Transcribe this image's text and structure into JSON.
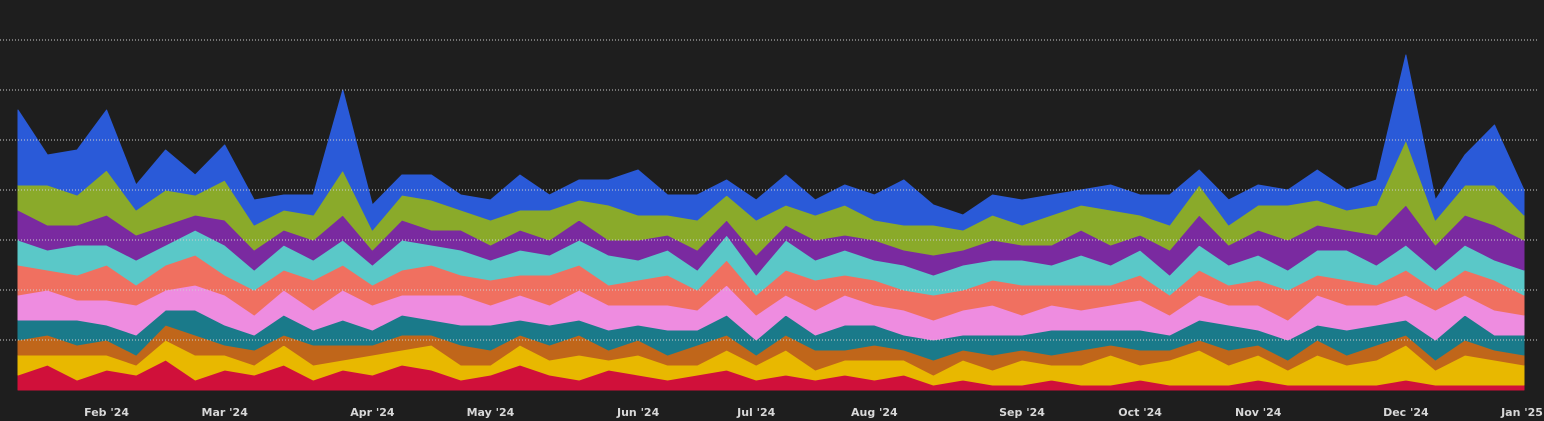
{
  "chart_data": {
    "type": "stacked_area",
    "categories": [
      null,
      null,
      null,
      "Feb '24",
      null,
      null,
      null,
      "Mar '24",
      null,
      null,
      null,
      null,
      "Apr '24",
      null,
      null,
      null,
      "May '24",
      null,
      null,
      null,
      null,
      "Jun '24",
      null,
      null,
      null,
      "Jul '24",
      null,
      null,
      null,
      "Aug '24",
      null,
      null,
      null,
      null,
      "Sep '24",
      null,
      null,
      null,
      "Oct '24",
      null,
      null,
      null,
      "Nov '24",
      null,
      null,
      null,
      null,
      "Dec '24",
      null,
      null,
      null,
      "Jan '25"
    ],
    "ylim": [
      0,
      7.8
    ],
    "yticks": [
      1,
      2,
      3,
      4,
      5,
      6,
      7
    ],
    "grid": true,
    "show_ytick_labels": false,
    "series": [
      {
        "color": "#d0103a",
        "values": [
          0.3,
          0.5,
          0.2,
          0.4,
          0.3,
          0.6,
          0.2,
          0.4,
          0.3,
          0.5,
          0.2,
          0.4,
          0.3,
          0.5,
          0.4,
          0.2,
          0.3,
          0.5,
          0.3,
          0.2,
          0.4,
          0.3,
          0.2,
          0.3,
          0.4,
          0.2,
          0.3,
          0.2,
          0.3,
          0.2,
          0.3,
          0.1,
          0.2,
          0.1,
          0.1,
          0.2,
          0.1,
          0.1,
          0.2,
          0.1,
          0.1,
          0.1,
          0.2,
          0.1,
          0.1,
          0.1,
          0.1,
          0.2,
          0.1,
          0.1,
          0.1,
          0.1
        ]
      },
      {
        "color": "#e8b800",
        "values": [
          0.4,
          0.2,
          0.5,
          0.3,
          0.2,
          0.4,
          0.5,
          0.3,
          0.2,
          0.4,
          0.3,
          0.2,
          0.4,
          0.3,
          0.5,
          0.3,
          0.2,
          0.4,
          0.3,
          0.5,
          0.2,
          0.4,
          0.3,
          0.2,
          0.4,
          0.3,
          0.5,
          0.2,
          0.3,
          0.4,
          0.3,
          0.2,
          0.4,
          0.3,
          0.5,
          0.3,
          0.4,
          0.6,
          0.3,
          0.5,
          0.7,
          0.4,
          0.5,
          0.3,
          0.6,
          0.4,
          0.5,
          0.7,
          0.3,
          0.6,
          0.5,
          0.4
        ]
      },
      {
        "color": "#c0661a",
        "values": [
          0.3,
          0.4,
          0.2,
          0.3,
          0.2,
          0.3,
          0.4,
          0.2,
          0.3,
          0.2,
          0.4,
          0.3,
          0.2,
          0.3,
          0.2,
          0.4,
          0.3,
          0.2,
          0.3,
          0.4,
          0.2,
          0.3,
          0.2,
          0.4,
          0.3,
          0.2,
          0.3,
          0.4,
          0.2,
          0.3,
          0.2,
          0.3,
          0.2,
          0.3,
          0.2,
          0.2,
          0.3,
          0.2,
          0.3,
          0.2,
          0.2,
          0.3,
          0.2,
          0.2,
          0.3,
          0.2,
          0.3,
          0.2,
          0.2,
          0.3,
          0.2,
          0.2
        ]
      },
      {
        "color": "#1a7a8a",
        "values": [
          0.4,
          0.3,
          0.5,
          0.3,
          0.4,
          0.3,
          0.5,
          0.4,
          0.3,
          0.4,
          0.3,
          0.5,
          0.3,
          0.4,
          0.3,
          0.4,
          0.5,
          0.3,
          0.4,
          0.3,
          0.4,
          0.3,
          0.5,
          0.3,
          0.4,
          0.3,
          0.4,
          0.3,
          0.5,
          0.4,
          0.3,
          0.4,
          0.3,
          0.4,
          0.3,
          0.5,
          0.4,
          0.3,
          0.4,
          0.3,
          0.4,
          0.5,
          0.3,
          0.4,
          0.3,
          0.5,
          0.4,
          0.3,
          0.4,
          0.5,
          0.3,
          0.4
        ]
      },
      {
        "color": "#ee8ce0",
        "values": [
          0.5,
          0.6,
          0.4,
          0.5,
          0.6,
          0.4,
          0.5,
          0.6,
          0.4,
          0.5,
          0.4,
          0.6,
          0.5,
          0.4,
          0.5,
          0.6,
          0.4,
          0.5,
          0.4,
          0.6,
          0.5,
          0.4,
          0.5,
          0.4,
          0.6,
          0.5,
          0.4,
          0.5,
          0.6,
          0.4,
          0.5,
          0.4,
          0.5,
          0.6,
          0.4,
          0.5,
          0.4,
          0.5,
          0.6,
          0.4,
          0.5,
          0.4,
          0.5,
          0.4,
          0.6,
          0.5,
          0.4,
          0.5,
          0.6,
          0.4,
          0.5,
          0.4
        ]
      },
      {
        "color": "#f07060",
        "values": [
          0.6,
          0.4,
          0.5,
          0.7,
          0.4,
          0.5,
          0.6,
          0.4,
          0.5,
          0.4,
          0.6,
          0.5,
          0.4,
          0.5,
          0.6,
          0.4,
          0.5,
          0.4,
          0.6,
          0.5,
          0.4,
          0.5,
          0.6,
          0.4,
          0.5,
          0.4,
          0.5,
          0.6,
          0.4,
          0.5,
          0.4,
          0.5,
          0.4,
          0.5,
          0.6,
          0.4,
          0.5,
          0.4,
          0.5,
          0.4,
          0.5,
          0.4,
          0.5,
          0.6,
          0.4,
          0.5,
          0.4,
          0.5,
          0.4,
          0.5,
          0.6,
          0.4
        ]
      },
      {
        "color": "#5ac8c8",
        "values": [
          0.5,
          0.4,
          0.6,
          0.4,
          0.5,
          0.4,
          0.5,
          0.6,
          0.4,
          0.5,
          0.4,
          0.5,
          0.4,
          0.6,
          0.4,
          0.5,
          0.4,
          0.5,
          0.4,
          0.5,
          0.6,
          0.4,
          0.5,
          0.4,
          0.5,
          0.4,
          0.6,
          0.4,
          0.5,
          0.4,
          0.5,
          0.4,
          0.5,
          0.4,
          0.5,
          0.4,
          0.6,
          0.4,
          0.5,
          0.4,
          0.5,
          0.4,
          0.5,
          0.4,
          0.5,
          0.6,
          0.4,
          0.5,
          0.4,
          0.5,
          0.4,
          0.5
        ]
      },
      {
        "color": "#7a2aa0",
        "values": [
          0.6,
          0.5,
          0.4,
          0.6,
          0.5,
          0.4,
          0.3,
          0.5,
          0.4,
          0.3,
          0.4,
          0.5,
          0.3,
          0.4,
          0.3,
          0.4,
          0.3,
          0.4,
          0.3,
          0.4,
          0.3,
          0.4,
          0.3,
          0.4,
          0.3,
          0.4,
          0.3,
          0.4,
          0.3,
          0.4,
          0.3,
          0.4,
          0.3,
          0.4,
          0.3,
          0.4,
          0.5,
          0.4,
          0.3,
          0.5,
          0.6,
          0.4,
          0.5,
          0.6,
          0.5,
          0.4,
          0.6,
          0.8,
          0.5,
          0.6,
          0.7,
          0.6
        ]
      },
      {
        "color": "#8aaa2a",
        "values": [
          0.5,
          0.8,
          0.6,
          0.9,
          0.5,
          0.7,
          0.4,
          0.8,
          0.5,
          0.4,
          0.5,
          0.9,
          0.4,
          0.5,
          0.6,
          0.4,
          0.5,
          0.4,
          0.6,
          0.4,
          0.7,
          0.5,
          0.4,
          0.6,
          0.5,
          0.7,
          0.4,
          0.5,
          0.6,
          0.4,
          0.5,
          0.6,
          0.4,
          0.5,
          0.4,
          0.6,
          0.5,
          0.7,
          0.4,
          0.5,
          0.6,
          0.4,
          0.5,
          0.7,
          0.5,
          0.4,
          0.6,
          1.3,
          0.5,
          0.6,
          0.8,
          0.5
        ]
      },
      {
        "color": "#2a5ad8",
        "values": [
          1.5,
          0.6,
          0.9,
          1.2,
          0.5,
          0.8,
          0.4,
          0.7,
          0.5,
          0.3,
          0.4,
          1.6,
          0.5,
          0.4,
          0.5,
          0.3,
          0.4,
          0.7,
          0.3,
          0.4,
          0.5,
          0.9,
          0.4,
          0.5,
          0.3,
          0.4,
          0.6,
          0.3,
          0.4,
          0.5,
          0.9,
          0.4,
          0.3,
          0.4,
          0.5,
          0.4,
          0.3,
          0.5,
          0.4,
          0.6,
          0.3,
          0.5,
          0.4,
          0.3,
          0.6,
          0.4,
          0.5,
          1.7,
          0.4,
          0.6,
          1.2,
          0.5
        ]
      }
    ]
  }
}
